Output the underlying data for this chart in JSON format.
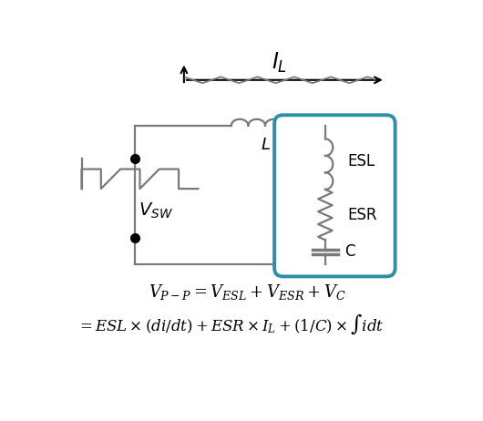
{
  "bg_color": "#ffffff",
  "wire_color": "#7a7a7a",
  "box_color": "#2E8FA8",
  "formula1": "$V_{P-P} = V_{ESL} + V_{ESR} + V_C$",
  "formula2": "$= ESL \\times (di/dt) + ESR \\times I_L + (1/C) \\times \\int idt$",
  "label_IL": "$I_L$",
  "label_L": "$L$",
  "label_VSW": "$V_{SW}$",
  "label_ESL": "ESL",
  "label_ESR": "ESR",
  "label_C": "C",
  "figsize": [
    5.3,
    4.62
  ],
  "dpi": 100
}
